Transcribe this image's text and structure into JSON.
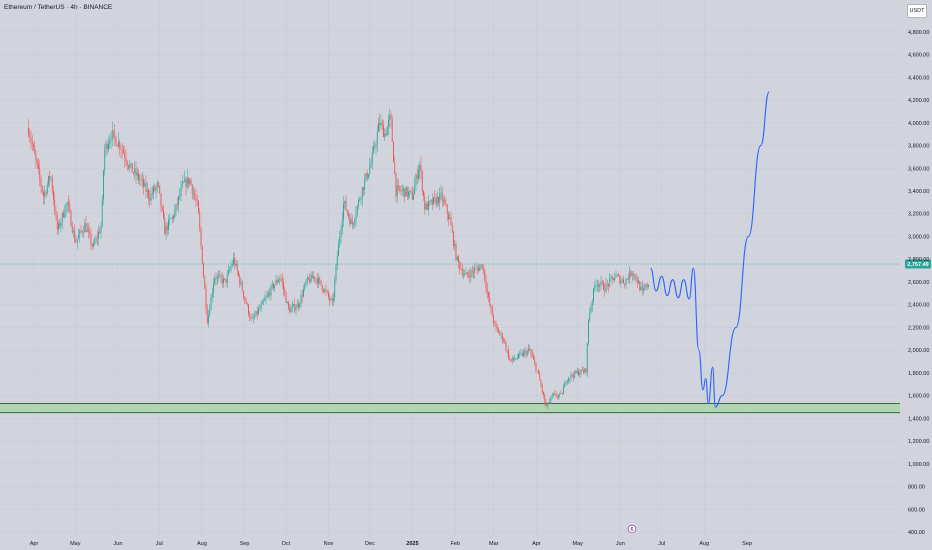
{
  "header": {
    "symbol_title": "Ethereum / TetherUS · 4h · BINANCE",
    "currency_button": "USDT"
  },
  "current_price_label": "2,757.49",
  "marker_label": "6",
  "colors": {
    "background": "#d1d4dc",
    "candle_up": "#26a69a",
    "candle_down": "#ef5350",
    "projection": "#2962ff",
    "support_zone": "#a5d6a7",
    "support_border": "#1b5e20",
    "price_line": "#26a69a"
  },
  "chart_data": {
    "type": "candlestick",
    "x_axis_labels": [
      "Apr",
      "May",
      "Jun",
      "Jul",
      "Aug",
      "Sep",
      "Oct",
      "Nov",
      "Dec",
      "2025",
      "Feb",
      "Mar",
      "Apr",
      "May",
      "Jun",
      "Jul",
      "Aug",
      "Sep"
    ],
    "y_axis_ticks": [
      {
        "value": 400,
        "label": "400.00"
      },
      {
        "value": 600,
        "label": "600.00"
      },
      {
        "value": 800,
        "label": "800.00"
      },
      {
        "value": 1000,
        "label": "1,000.00"
      },
      {
        "value": 1200,
        "label": "1,200.00"
      },
      {
        "value": 1400,
        "label": "1,400.00"
      },
      {
        "value": 1600,
        "label": "1,600.00"
      },
      {
        "value": 1800,
        "label": "1,800.00"
      },
      {
        "value": 2000,
        "label": "2,000.00"
      },
      {
        "value": 2200,
        "label": "2,200.00"
      },
      {
        "value": 2400,
        "label": "2,400.00"
      },
      {
        "value": 2600,
        "label": "2,600.00"
      },
      {
        "value": 2800,
        "label": "2,800.00"
      },
      {
        "value": 3000,
        "label": "3,000.00"
      },
      {
        "value": 3200,
        "label": "3,200.00"
      },
      {
        "value": 3400,
        "label": "3,400.00"
      },
      {
        "value": 3600,
        "label": "3,600.00"
      },
      {
        "value": 3800,
        "label": "3,800.00"
      },
      {
        "value": 4000,
        "label": "4,000.00"
      },
      {
        "value": 4200,
        "label": "4,200.00"
      },
      {
        "value": 4400,
        "label": "4,400.00"
      },
      {
        "value": 4600,
        "label": "4,600.00"
      },
      {
        "value": 4800,
        "label": "4,800.00"
      }
    ],
    "y_range": [
      330,
      5080
    ],
    "current_price": 2757.49,
    "support_zone": {
      "from": 1450,
      "to": 1530
    },
    "price_path": [
      {
        "date": "2024-03-28",
        "price": 3950
      },
      {
        "date": "2024-04-08",
        "price": 3350
      },
      {
        "date": "2024-04-13",
        "price": 3550
      },
      {
        "date": "2024-04-18",
        "price": 3050
      },
      {
        "date": "2024-04-25",
        "price": 3300
      },
      {
        "date": "2024-05-01",
        "price": 2950
      },
      {
        "date": "2024-05-08",
        "price": 3100
      },
      {
        "date": "2024-05-14",
        "price": 2900
      },
      {
        "date": "2024-05-20",
        "price": 3100
      },
      {
        "date": "2024-05-22",
        "price": 3750
      },
      {
        "date": "2024-05-27",
        "price": 3900
      },
      {
        "date": "2024-06-03",
        "price": 3800
      },
      {
        "date": "2024-06-10",
        "price": 3600
      },
      {
        "date": "2024-06-17",
        "price": 3500
      },
      {
        "date": "2024-06-24",
        "price": 3350
      },
      {
        "date": "2024-06-30",
        "price": 3450
      },
      {
        "date": "2024-07-05",
        "price": 3050
      },
      {
        "date": "2024-07-12",
        "price": 3200
      },
      {
        "date": "2024-07-18",
        "price": 3450
      },
      {
        "date": "2024-07-23",
        "price": 3500
      },
      {
        "date": "2024-07-29",
        "price": 3250
      },
      {
        "date": "2024-08-05",
        "price": 2250
      },
      {
        "date": "2024-08-10",
        "price": 2650
      },
      {
        "date": "2024-08-18",
        "price": 2600
      },
      {
        "date": "2024-08-24",
        "price": 2800
      },
      {
        "date": "2024-08-31",
        "price": 2500
      },
      {
        "date": "2024-09-06",
        "price": 2250
      },
      {
        "date": "2024-09-14",
        "price": 2400
      },
      {
        "date": "2024-09-21",
        "price": 2550
      },
      {
        "date": "2024-09-27",
        "price": 2650
      },
      {
        "date": "2024-10-03",
        "price": 2350
      },
      {
        "date": "2024-10-10",
        "price": 2400
      },
      {
        "date": "2024-10-16",
        "price": 2600
      },
      {
        "date": "2024-10-22",
        "price": 2650
      },
      {
        "date": "2024-10-28",
        "price": 2550
      },
      {
        "date": "2024-11-04",
        "price": 2400
      },
      {
        "date": "2024-11-07",
        "price": 2800
      },
      {
        "date": "2024-11-12",
        "price": 3300
      },
      {
        "date": "2024-11-18",
        "price": 3100
      },
      {
        "date": "2024-11-25",
        "price": 3400
      },
      {
        "date": "2024-12-02",
        "price": 3650
      },
      {
        "date": "2024-12-08",
        "price": 4000
      },
      {
        "date": "2024-12-12",
        "price": 3900
      },
      {
        "date": "2024-12-16",
        "price": 4050
      },
      {
        "date": "2024-12-20",
        "price": 3400
      },
      {
        "date": "2024-12-26",
        "price": 3400
      },
      {
        "date": "2025-01-01",
        "price": 3350
      },
      {
        "date": "2025-01-06",
        "price": 3650
      },
      {
        "date": "2025-01-10",
        "price": 3250
      },
      {
        "date": "2025-01-16",
        "price": 3300
      },
      {
        "date": "2025-01-22",
        "price": 3350
      },
      {
        "date": "2025-01-28",
        "price": 3150
      },
      {
        "date": "2025-02-02",
        "price": 2800
      },
      {
        "date": "2025-02-08",
        "price": 2650
      },
      {
        "date": "2025-02-15",
        "price": 2700
      },
      {
        "date": "2025-02-21",
        "price": 2750
      },
      {
        "date": "2025-02-25",
        "price": 2450
      },
      {
        "date": "2025-03-02",
        "price": 2200
      },
      {
        "date": "2025-03-08",
        "price": 2100
      },
      {
        "date": "2025-03-13",
        "price": 1900
      },
      {
        "date": "2025-03-20",
        "price": 1950
      },
      {
        "date": "2025-03-27",
        "price": 2000
      },
      {
        "date": "2025-04-02",
        "price": 1800
      },
      {
        "date": "2025-04-08",
        "price": 1500
      },
      {
        "date": "2025-04-13",
        "price": 1600
      },
      {
        "date": "2025-04-19",
        "price": 1600
      },
      {
        "date": "2025-04-23",
        "price": 1750
      },
      {
        "date": "2025-04-30",
        "price": 1800
      },
      {
        "date": "2025-05-07",
        "price": 1820
      },
      {
        "date": "2025-05-09",
        "price": 2300
      },
      {
        "date": "2025-05-14",
        "price": 2600
      },
      {
        "date": "2025-05-21",
        "price": 2550
      },
      {
        "date": "2025-05-28",
        "price": 2650
      },
      {
        "date": "2025-06-04",
        "price": 2600
      },
      {
        "date": "2025-06-10",
        "price": 2700
      },
      {
        "date": "2025-06-17",
        "price": 2500
      },
      {
        "date": "2025-06-22",
        "price": 2600
      }
    ],
    "projection_path": [
      {
        "date": "2025-06-23",
        "price": 2720
      },
      {
        "date": "2025-06-27",
        "price": 2520
      },
      {
        "date": "2025-07-01",
        "price": 2650
      },
      {
        "date": "2025-07-05",
        "price": 2480
      },
      {
        "date": "2025-07-09",
        "price": 2620
      },
      {
        "date": "2025-07-13",
        "price": 2460
      },
      {
        "date": "2025-07-17",
        "price": 2620
      },
      {
        "date": "2025-07-21",
        "price": 2450
      },
      {
        "date": "2025-07-24",
        "price": 2720
      },
      {
        "date": "2025-07-28",
        "price": 2000
      },
      {
        "date": "2025-07-31",
        "price": 1650
      },
      {
        "date": "2025-08-02",
        "price": 1750
      },
      {
        "date": "2025-08-04",
        "price": 1530
      },
      {
        "date": "2025-08-07",
        "price": 1850
      },
      {
        "date": "2025-08-09",
        "price": 1500
      },
      {
        "date": "2025-08-14",
        "price": 1600
      },
      {
        "date": "2025-08-24",
        "price": 2200
      },
      {
        "date": "2025-09-02",
        "price": 3000
      },
      {
        "date": "2025-09-11",
        "price": 3800
      },
      {
        "date": "2025-09-17",
        "price": 4270
      }
    ]
  }
}
